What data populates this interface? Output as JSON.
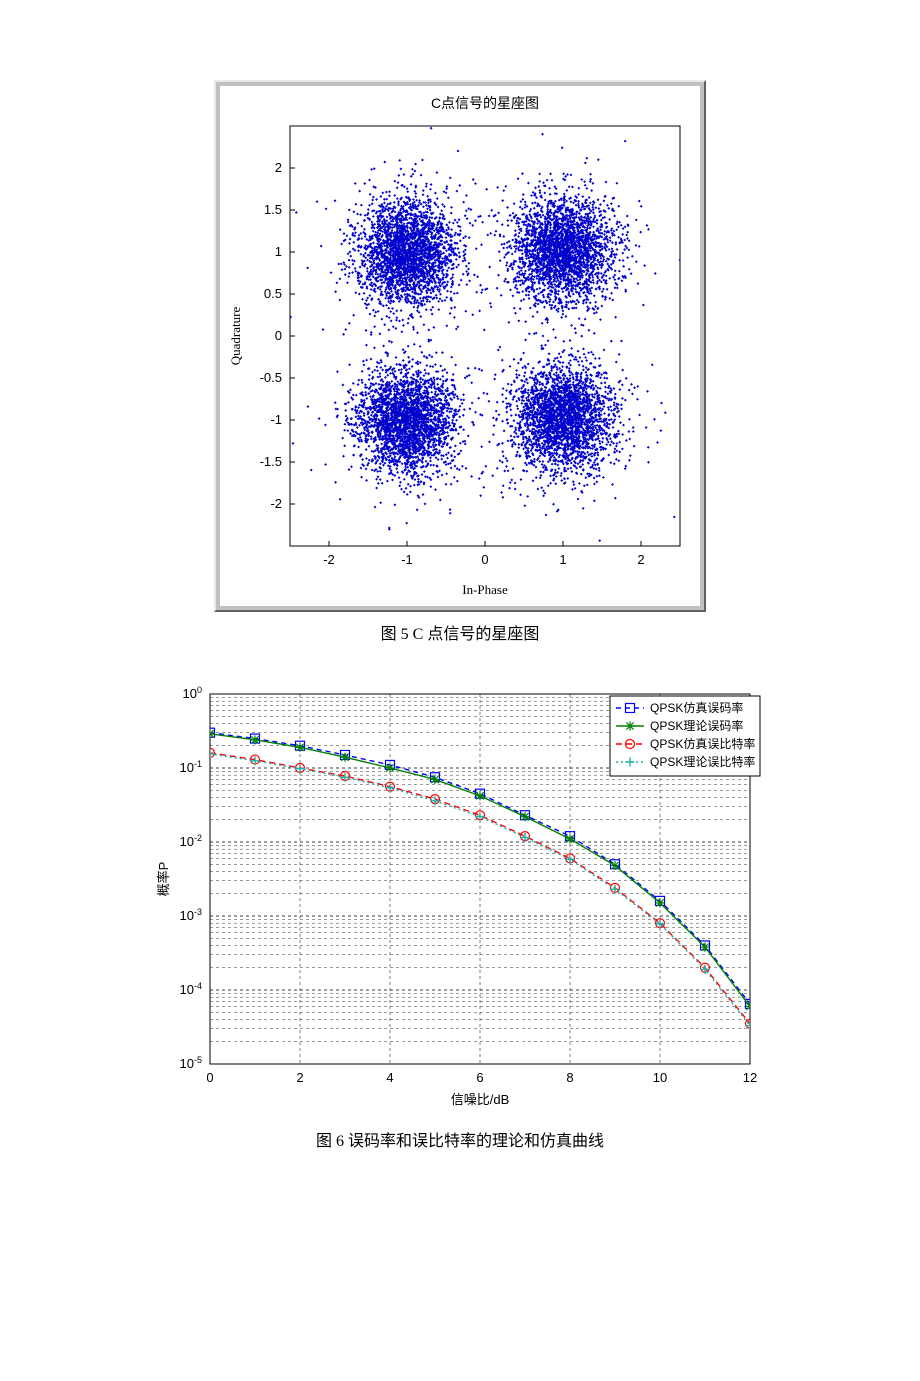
{
  "fig5": {
    "caption": "图 5    C 点信号的星座图",
    "chart": {
      "type": "scatter",
      "title": "C点信号的星座图",
      "title_fontsize": 14,
      "xlabel": "In-Phase",
      "ylabel": "Quadrature",
      "label_fontsize": 13,
      "xlim": [
        -2.5,
        2.5
      ],
      "ylim": [
        -2.5,
        2.5
      ],
      "xticks": [
        -2,
        -1,
        0,
        1,
        2
      ],
      "yticks": [
        -2,
        -1.5,
        -1,
        -0.5,
        0,
        0.5,
        1,
        1.5,
        2
      ],
      "bg_inner": "#ffffff",
      "bg_outer": "#c0c0c0",
      "point_color": "#0000cd",
      "cluster_centers": [
        [
          1,
          1
        ],
        [
          -1,
          1
        ],
        [
          -1,
          -1
        ],
        [
          1,
          -1
        ]
      ],
      "cluster_radius": 0.95,
      "points_per_cluster": 2600,
      "outlier_count": 120,
      "outlier_spread": 1.35,
      "marker_size": 2
    }
  },
  "fig6": {
    "caption": "图 6    误码率和误比特率的理论和仿真曲线",
    "chart": {
      "type": "line",
      "xlabel": "信噪比/dB",
      "ylabel": "概率P",
      "label_fontsize": 13,
      "xlim": [
        0,
        12
      ],
      "ylim_exp": [
        -5,
        0
      ],
      "xticks": [
        0,
        2,
        4,
        6,
        8,
        10,
        12
      ],
      "ytick_exponents": [
        -5,
        -4,
        -3,
        -2,
        -1,
        0
      ],
      "log_minor": [
        2,
        3,
        4,
        5,
        6,
        7,
        8,
        9
      ],
      "bg": "#ffffff",
      "grid_color": "#000000",
      "grid_dash": "3,3",
      "series": [
        {
          "name": "QPSK仿真误码率",
          "color": "#0000ff",
          "marker": "square",
          "dash": "5,4",
          "x": [
            0,
            1,
            2,
            3,
            4,
            5,
            6,
            7,
            8,
            9,
            10,
            11,
            12
          ],
          "y": [
            0.3,
            0.25,
            0.2,
            0.15,
            0.11,
            0.075,
            0.045,
            0.023,
            0.012,
            0.005,
            0.0016,
            0.0004,
            6.5e-05
          ]
        },
        {
          "name": "QPSK理论误码率",
          "color": "#008000",
          "marker": "star",
          "dash": "none",
          "x": [
            0,
            1,
            2,
            3,
            4,
            5,
            6,
            7,
            8,
            9,
            10,
            11,
            12
          ],
          "y": [
            0.29,
            0.24,
            0.19,
            0.14,
            0.1,
            0.07,
            0.042,
            0.022,
            0.011,
            0.0048,
            0.0015,
            0.00038,
            6e-05
          ]
        },
        {
          "name": "QPSK仿真误比特率",
          "color": "#ff0000",
          "marker": "circle",
          "dash": "6,4",
          "x": [
            0,
            1,
            2,
            3,
            4,
            5,
            6,
            7,
            8,
            9,
            10,
            11,
            12
          ],
          "y": [
            0.16,
            0.13,
            0.1,
            0.078,
            0.056,
            0.038,
            0.023,
            0.012,
            0.006,
            0.0024,
            0.0008,
            0.0002,
            3.5e-05
          ]
        },
        {
          "name": "QPSK理论误比特率",
          "color": "#20b2aa",
          "marker": "plus",
          "dash": "2,3",
          "x": [
            0,
            1,
            2,
            3,
            4,
            5,
            6,
            7,
            8,
            9,
            10,
            11,
            12
          ],
          "y": [
            0.155,
            0.125,
            0.098,
            0.075,
            0.054,
            0.036,
            0.022,
            0.0115,
            0.0058,
            0.0023,
            0.00078,
            0.00019,
            3.3e-05
          ]
        }
      ],
      "legend": {
        "position": "top-right",
        "items": [
          "QPSK仿真误码率",
          "QPSK理论误码率",
          "QPSK仿真误比特率",
          "QPSK理论误比特率"
        ]
      }
    }
  }
}
